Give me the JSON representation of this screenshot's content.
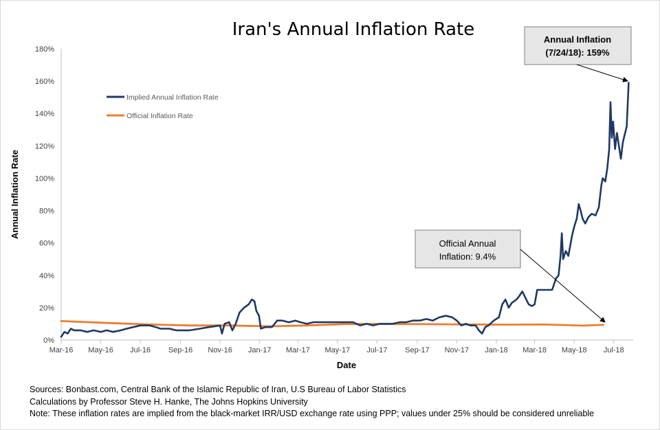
{
  "chart_data": {
    "type": "line",
    "title": "Iran's Annual Inflation Rate",
    "xlabel": "Date",
    "ylabel": "Annual Inflation Rate",
    "x_range": [
      "2016-03-01",
      "2018-07-31"
    ],
    "x_ticks": [
      "Mar-16",
      "May-16",
      "Jul-16",
      "Sep-16",
      "Nov-16",
      "Jan-17",
      "Mar-17",
      "May-17",
      "Jul-17",
      "Sep-17",
      "Nov-17",
      "Jan-18",
      "Mar-18",
      "May-18",
      "Jul-18"
    ],
    "y_ticks": [
      "0%",
      "20%",
      "40%",
      "60%",
      "80%",
      "100%",
      "120%",
      "140%",
      "160%",
      "180%"
    ],
    "ylim": [
      0,
      180
    ],
    "grid": false,
    "legend_position": "top-left",
    "series": [
      {
        "name": "Implied Annual Inflation Rate",
        "color": "#1f3864",
        "points": [
          [
            "2016-03-01",
            2
          ],
          [
            "2016-03-06",
            5
          ],
          [
            "2016-03-11",
            4
          ],
          [
            "2016-03-16",
            7
          ],
          [
            "2016-03-21",
            6
          ],
          [
            "2016-03-31",
            6
          ],
          [
            "2016-04-10",
            5
          ],
          [
            "2016-04-20",
            6
          ],
          [
            "2016-05-01",
            5
          ],
          [
            "2016-05-10",
            6
          ],
          [
            "2016-05-20",
            5
          ],
          [
            "2016-06-01",
            6
          ],
          [
            "2016-06-10",
            7
          ],
          [
            "2016-06-20",
            8
          ],
          [
            "2016-07-01",
            9
          ],
          [
            "2016-07-15",
            9
          ],
          [
            "2016-07-25",
            8
          ],
          [
            "2016-08-01",
            7
          ],
          [
            "2016-08-15",
            7
          ],
          [
            "2016-08-25",
            6
          ],
          [
            "2016-09-05",
            6
          ],
          [
            "2016-09-15",
            6
          ],
          [
            "2016-10-01",
            7
          ],
          [
            "2016-10-15",
            8
          ],
          [
            "2016-11-01",
            9
          ],
          [
            "2016-11-04",
            4
          ],
          [
            "2016-11-08",
            10
          ],
          [
            "2016-11-15",
            11
          ],
          [
            "2016-11-20",
            6
          ],
          [
            "2016-11-25",
            10
          ],
          [
            "2016-12-01",
            17
          ],
          [
            "2016-12-08",
            20
          ],
          [
            "2016-12-15",
            22
          ],
          [
            "2016-12-20",
            25
          ],
          [
            "2016-12-24",
            24
          ],
          [
            "2016-12-27",
            18
          ],
          [
            "2016-12-31",
            15
          ],
          [
            "2017-01-03",
            7
          ],
          [
            "2017-01-10",
            8
          ],
          [
            "2017-01-20",
            8
          ],
          [
            "2017-01-28",
            12
          ],
          [
            "2017-02-05",
            12
          ],
          [
            "2017-02-15",
            11
          ],
          [
            "2017-02-25",
            12
          ],
          [
            "2017-03-05",
            11
          ],
          [
            "2017-03-15",
            10
          ],
          [
            "2017-03-25",
            11
          ],
          [
            "2017-04-10",
            11
          ],
          [
            "2017-04-25",
            11
          ],
          [
            "2017-05-10",
            11
          ],
          [
            "2017-05-25",
            11
          ],
          [
            "2017-06-05",
            9
          ],
          [
            "2017-06-15",
            10
          ],
          [
            "2017-06-25",
            9
          ],
          [
            "2017-07-05",
            10
          ],
          [
            "2017-07-15",
            10
          ],
          [
            "2017-07-25",
            10
          ],
          [
            "2017-08-05",
            11
          ],
          [
            "2017-08-15",
            11
          ],
          [
            "2017-08-25",
            12
          ],
          [
            "2017-09-05",
            12
          ],
          [
            "2017-09-15",
            13
          ],
          [
            "2017-09-25",
            12
          ],
          [
            "2017-10-05",
            14
          ],
          [
            "2017-10-15",
            15
          ],
          [
            "2017-10-25",
            14
          ],
          [
            "2017-11-01",
            12
          ],
          [
            "2017-11-08",
            9
          ],
          [
            "2017-11-15",
            10
          ],
          [
            "2017-11-22",
            9
          ],
          [
            "2017-11-30",
            9
          ],
          [
            "2017-12-05",
            6
          ],
          [
            "2017-12-10",
            4
          ],
          [
            "2017-12-15",
            8
          ],
          [
            "2017-12-20",
            9
          ],
          [
            "2017-12-28",
            12
          ],
          [
            "2018-01-05",
            14
          ],
          [
            "2018-01-10",
            22
          ],
          [
            "2018-01-15",
            25
          ],
          [
            "2018-01-20",
            20
          ],
          [
            "2018-01-25",
            23
          ],
          [
            "2018-02-01",
            25
          ],
          [
            "2018-02-05",
            27
          ],
          [
            "2018-02-10",
            30
          ],
          [
            "2018-02-15",
            26
          ],
          [
            "2018-02-20",
            22
          ],
          [
            "2018-02-25",
            21
          ],
          [
            "2018-03-01",
            22
          ],
          [
            "2018-03-05",
            31
          ],
          [
            "2018-03-10",
            31
          ],
          [
            "2018-03-20",
            31
          ],
          [
            "2018-03-28",
            31
          ],
          [
            "2018-04-03",
            38
          ],
          [
            "2018-04-07",
            40
          ],
          [
            "2018-04-10",
            52
          ],
          [
            "2018-04-12",
            66
          ],
          [
            "2018-04-14",
            50
          ],
          [
            "2018-04-18",
            55
          ],
          [
            "2018-04-22",
            52
          ],
          [
            "2018-04-28",
            65
          ],
          [
            "2018-05-01",
            70
          ],
          [
            "2018-05-05",
            75
          ],
          [
            "2018-05-08",
            84
          ],
          [
            "2018-05-11",
            80
          ],
          [
            "2018-05-14",
            75
          ],
          [
            "2018-05-18",
            72
          ],
          [
            "2018-05-23",
            76
          ],
          [
            "2018-05-28",
            78
          ],
          [
            "2018-06-03",
            77
          ],
          [
            "2018-06-08",
            82
          ],
          [
            "2018-06-12",
            96
          ],
          [
            "2018-06-14",
            100
          ],
          [
            "2018-06-18",
            98
          ],
          [
            "2018-06-21",
            106
          ],
          [
            "2018-06-24",
            118
          ],
          [
            "2018-06-26",
            147
          ],
          [
            "2018-06-28",
            125
          ],
          [
            "2018-06-30",
            135
          ],
          [
            "2018-07-03",
            118
          ],
          [
            "2018-07-06",
            128
          ],
          [
            "2018-07-09",
            120
          ],
          [
            "2018-07-12",
            112
          ],
          [
            "2018-07-15",
            122
          ],
          [
            "2018-07-18",
            127
          ],
          [
            "2018-07-21",
            132
          ],
          [
            "2018-07-24",
            159
          ]
        ]
      },
      {
        "name": "Official Inflation Rate",
        "color": "#ed7d31",
        "points": [
          [
            "2016-03-01",
            11.7
          ],
          [
            "2016-05-15",
            10.5
          ],
          [
            "2016-07-15",
            9.6
          ],
          [
            "2016-09-15",
            9.0
          ],
          [
            "2016-11-15",
            9.0
          ],
          [
            "2017-01-15",
            8.5
          ],
          [
            "2017-03-15",
            9.0
          ],
          [
            "2017-05-15",
            9.9
          ],
          [
            "2017-07-15",
            9.9
          ],
          [
            "2017-09-15",
            9.8
          ],
          [
            "2017-11-15",
            9.6
          ],
          [
            "2018-01-15",
            9.5
          ],
          [
            "2018-03-15",
            9.6
          ],
          [
            "2018-05-15",
            8.9
          ],
          [
            "2018-06-15",
            9.4
          ]
        ]
      }
    ],
    "annotations": [
      {
        "text": [
          "Annual Inflation",
          "(7/24/18): 159%"
        ],
        "x": "2018-07-24",
        "y": 159
      },
      {
        "text": [
          "Official Annual",
          "Inflation: 9.4%"
        ],
        "x": "2018-06-15",
        "y": 9.4
      }
    ]
  },
  "sources": [
    "Sources: Bonbast.com, Central Bank of the Islamic Republic of Iran, U.S Bureau of Labor Statistics",
    "Calculations by Professor Steve H. Hanke, The Johns Hopkins University",
    "Note: These inflation rates are implied from the black-market IRR/USD exchange rate using PPP; values under 25% should be considered unreliable"
  ]
}
